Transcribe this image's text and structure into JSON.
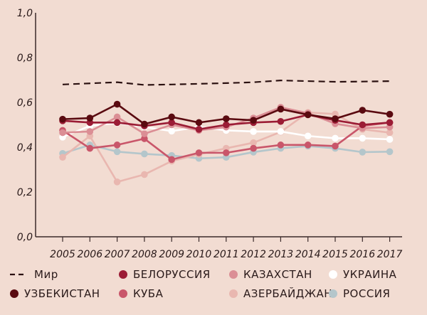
{
  "chart_data": {
    "type": "line",
    "title": "",
    "xlabel": "",
    "ylabel": "",
    "ylim": [
      0,
      1
    ],
    "yticks": [
      "0,0",
      "0,2",
      "0,4",
      "0,6",
      "0,8",
      "1,0"
    ],
    "ytick_values": [
      0,
      0.2,
      0.4,
      0.6,
      0.8,
      1.0
    ],
    "x": [
      "2005",
      "2006",
      "2007",
      "2008",
      "2009",
      "2010",
      "2011",
      "2012",
      "2013",
      "2014",
      "2015",
      "2016",
      "2017"
    ],
    "series": [
      {
        "id": "mir",
        "name": "Мир",
        "color": "#2a1010",
        "dashed": true,
        "markers": false,
        "values": [
          0.68,
          0.685,
          0.69,
          0.678,
          0.68,
          0.683,
          0.686,
          0.69,
          0.698,
          0.695,
          0.692,
          0.693,
          0.695
        ]
      },
      {
        "id": "russia",
        "name": "Россия",
        "color": "#b4c6cb",
        "dashed": false,
        "markers": true,
        "values": [
          0.372,
          0.41,
          0.38,
          0.37,
          0.363,
          0.35,
          0.355,
          0.378,
          0.395,
          0.405,
          0.395,
          0.378,
          0.38
        ]
      },
      {
        "id": "azerbaijan",
        "name": "Азербайджан",
        "color": "#e9b7b0",
        "dashed": false,
        "markers": true,
        "values": [
          0.355,
          0.45,
          0.245,
          0.278,
          0.338,
          0.368,
          0.395,
          0.42,
          0.468,
          0.555,
          0.548,
          0.48,
          0.465
        ]
      },
      {
        "id": "ukraine",
        "name": "Украина",
        "color": "#ffffff",
        "dashed": false,
        "markers": true,
        "values": [
          0.445,
          0.495,
          0.508,
          0.49,
          0.472,
          0.49,
          0.475,
          0.47,
          0.47,
          0.45,
          0.44,
          0.44,
          0.435
        ]
      },
      {
        "id": "cuba",
        "name": "Куба",
        "color": "#c9566a",
        "dashed": false,
        "markers": true,
        "values": [
          0.475,
          0.395,
          0.41,
          0.438,
          0.345,
          0.375,
          0.375,
          0.395,
          0.41,
          0.41,
          0.405,
          0.495,
          0.51
        ]
      },
      {
        "id": "kazakhstan",
        "name": "Казахстан",
        "color": "#db8e95",
        "dashed": false,
        "markers": true,
        "values": [
          0.465,
          0.47,
          0.535,
          0.46,
          0.5,
          0.475,
          0.49,
          0.53,
          0.578,
          0.552,
          0.505,
          0.485,
          0.49
        ]
      },
      {
        "id": "belarus",
        "name": "Белоруссия",
        "color": "#9b1c35",
        "dashed": false,
        "markers": true,
        "values": [
          0.518,
          0.51,
          0.51,
          0.495,
          0.51,
          0.48,
          0.5,
          0.51,
          0.515,
          0.545,
          0.52,
          0.5,
          0.51
        ]
      },
      {
        "id": "uzbekistan",
        "name": "Узбекистан",
        "color": "#5a0a10",
        "dashed": false,
        "markers": true,
        "values": [
          0.525,
          0.53,
          0.592,
          0.503,
          0.535,
          0.51,
          0.527,
          0.52,
          0.57,
          0.545,
          0.527,
          0.565,
          0.547
        ]
      }
    ],
    "legend": {
      "placement": "bottom",
      "rows": [
        [
          "mir",
          "belarus",
          "kazakhstan",
          "ukraine"
        ],
        [
          "uzbekistan",
          "cuba",
          "azerbaijan",
          "russia"
        ]
      ]
    }
  }
}
